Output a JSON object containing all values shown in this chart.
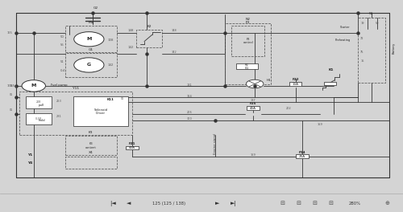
{
  "bg_color": "#d4d4d4",
  "diagram_bg": "#f5f5f5",
  "line_color": "#444444",
  "toolbar_bg": "#d0d0d0",
  "page_info": "125 (125 / 138)",
  "zoom_level": "280%",
  "wire_color": "#333333",
  "component_edge": "#333333",
  "dashed_color": "#555555",
  "text_color": "#222222",
  "faint_color": "#888888"
}
